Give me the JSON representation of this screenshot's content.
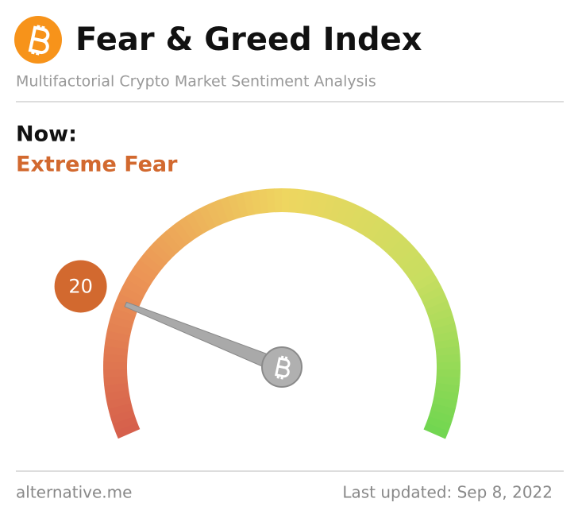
{
  "header": {
    "title": "Fear & Greed Index",
    "subtitle": "Multifactorial Crypto Market Sentiment Analysis"
  },
  "now": {
    "label": "Now:",
    "classification": "Extreme Fear"
  },
  "gauge": {
    "value": 20,
    "range": [
      0,
      100
    ],
    "color": "#d2692f"
  },
  "footer": {
    "source": "alternative.me",
    "updated": "Last updated: Sep 8, 2022"
  }
}
